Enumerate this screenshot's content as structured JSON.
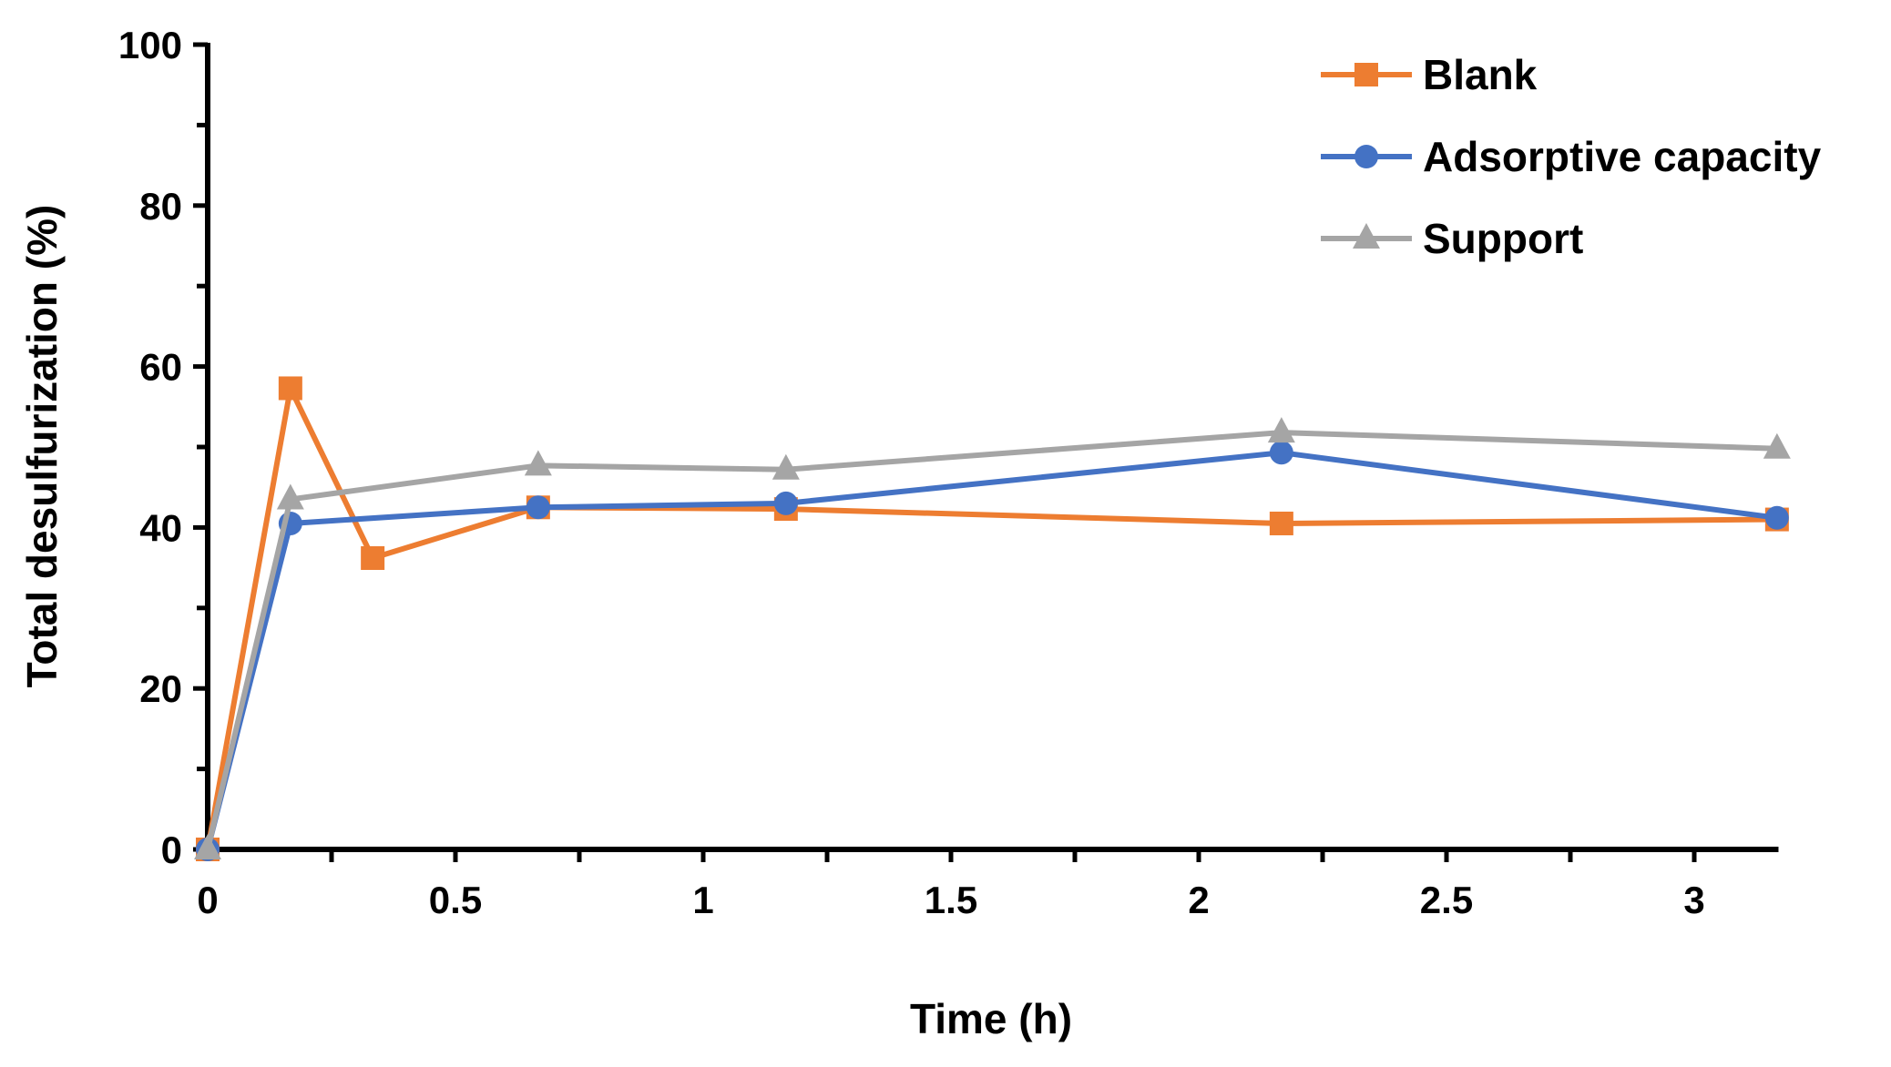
{
  "chart_data": {
    "type": "line",
    "title": "",
    "xlabel": "Time (h)",
    "ylabel": "Total desulfurization (%)",
    "xlim": [
      0,
      3.17
    ],
    "ylim": [
      0,
      100
    ],
    "xticks": [
      0,
      0.5,
      1,
      1.5,
      2,
      2.5,
      3
    ],
    "xtick_labels": [
      "0",
      "0.5",
      "1",
      "1.5",
      "2",
      "2.5",
      "3"
    ],
    "yticks": [
      0,
      20,
      40,
      60,
      80,
      100
    ],
    "ytick_labels": [
      "0",
      "20",
      "40",
      "60",
      "80",
      "100"
    ],
    "grid": false,
    "legend_position": "top-right",
    "series": [
      {
        "name": "Blank",
        "color": "#ED7D31",
        "marker": "square",
        "x": [
          0,
          0.167,
          0.333,
          0.667,
          1.167,
          2.167,
          3.167
        ],
        "y": [
          0,
          57.3,
          36.2,
          42.5,
          42.3,
          40.5,
          41.0
        ]
      },
      {
        "name": "Adsorptive capacity",
        "color": "#4472C4",
        "marker": "circle",
        "x": [
          0,
          0.167,
          0.667,
          1.167,
          2.167,
          3.167
        ],
        "y": [
          0,
          40.5,
          42.5,
          43.0,
          49.3,
          41.2
        ]
      },
      {
        "name": "Support",
        "color": "#A5A5A5",
        "marker": "triangle",
        "x": [
          0,
          0.167,
          0.667,
          1.167,
          2.167,
          3.167
        ],
        "y": [
          0,
          43.5,
          47.7,
          47.2,
          51.8,
          49.8
        ]
      }
    ]
  }
}
